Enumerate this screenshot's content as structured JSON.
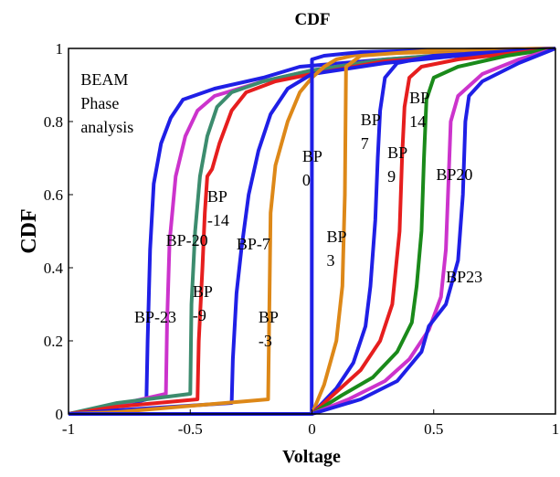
{
  "chart_data": {
    "type": "line",
    "title": "CDF",
    "xlabel": "Voltage",
    "ylabel": "CDF",
    "xlim": [
      -1,
      1
    ],
    "ylim": [
      0,
      1
    ],
    "x_ticks": [
      "-1",
      "-0.5",
      "0",
      "0.5",
      "1"
    ],
    "y_ticks": [
      "0",
      "0.2",
      "0.4",
      "0.6",
      "0.8",
      "1"
    ],
    "grid": false,
    "legend": "none",
    "annotations": [
      {
        "id": "beam",
        "lines": [
          "BEAM",
          "Phase",
          "analysis"
        ],
        "x": -0.95,
        "y": 0.9
      },
      {
        "id": "bp0",
        "lines": [
          "BP",
          "0"
        ],
        "x": -0.04,
        "y": 0.69
      },
      {
        "id": "bp3",
        "lines": [
          "BP",
          "3"
        ],
        "x": 0.06,
        "y": 0.47
      },
      {
        "id": "bp7",
        "lines": [
          "BP",
          "7"
        ],
        "x": 0.2,
        "y": 0.79
      },
      {
        "id": "bp9",
        "lines": [
          "BP",
          "9"
        ],
        "x": 0.31,
        "y": 0.7
      },
      {
        "id": "bp14",
        "lines": [
          "BP",
          "14"
        ],
        "x": 0.4,
        "y": 0.85
      },
      {
        "id": "bp20",
        "lines": [
          "BP20"
        ],
        "x": 0.51,
        "y": 0.64
      },
      {
        "id": "bp23",
        "lines": [
          "BP23"
        ],
        "x": 0.55,
        "y": 0.36
      },
      {
        "id": "bpm3",
        "lines": [
          "BP",
          "-3"
        ],
        "x": -0.22,
        "y": 0.25
      },
      {
        "id": "bpm7",
        "lines": [
          "BP-7"
        ],
        "x": -0.31,
        "y": 0.45
      },
      {
        "id": "bpm9",
        "lines": [
          "BP",
          "-9"
        ],
        "x": -0.49,
        "y": 0.32
      },
      {
        "id": "bpm14",
        "lines": [
          "BP",
          "-14"
        ],
        "x": -0.43,
        "y": 0.58
      },
      {
        "id": "bpm20",
        "lines": [
          "BP-20"
        ],
        "x": -0.6,
        "y": 0.46
      },
      {
        "id": "bpm23",
        "lines": [
          "BP-23"
        ],
        "x": -0.73,
        "y": 0.25
      }
    ],
    "series": [
      {
        "color": "#1f1fe6",
        "points": [
          [
            -1,
            0
          ],
          [
            -0.8,
            0.02
          ],
          [
            -0.68,
            0.04
          ],
          [
            -0.675,
            0.2
          ],
          [
            -0.665,
            0.45
          ],
          [
            -0.65,
            0.63
          ],
          [
            -0.62,
            0.74
          ],
          [
            -0.58,
            0.81
          ],
          [
            -0.53,
            0.86
          ],
          [
            -0.4,
            0.89
          ],
          [
            -0.2,
            0.92
          ],
          [
            -0.05,
            0.95
          ],
          [
            0.3,
            0.97
          ],
          [
            0.6,
            0.98
          ],
          [
            1,
            1
          ]
        ]
      },
      {
        "color": "#cc33cc",
        "points": [
          [
            -1,
            0
          ],
          [
            -0.8,
            0.025
          ],
          [
            -0.6,
            0.055
          ],
          [
            -0.595,
            0.25
          ],
          [
            -0.585,
            0.47
          ],
          [
            -0.56,
            0.65
          ],
          [
            -0.52,
            0.76
          ],
          [
            -0.47,
            0.83
          ],
          [
            -0.4,
            0.87
          ],
          [
            -0.2,
            0.91
          ],
          [
            0,
            0.94
          ],
          [
            0.3,
            0.97
          ],
          [
            0.6,
            0.985
          ],
          [
            1,
            1
          ]
        ]
      },
      {
        "color": "#3c8c6e",
        "points": [
          [
            -1,
            0
          ],
          [
            -0.8,
            0.03
          ],
          [
            -0.5,
            0.055
          ],
          [
            -0.495,
            0.3
          ],
          [
            -0.48,
            0.5
          ],
          [
            -0.46,
            0.65
          ],
          [
            -0.43,
            0.76
          ],
          [
            -0.39,
            0.84
          ],
          [
            -0.33,
            0.88
          ],
          [
            -0.2,
            0.91
          ],
          [
            0,
            0.94
          ],
          [
            0.3,
            0.97
          ],
          [
            0.6,
            0.985
          ],
          [
            1,
            1
          ]
        ]
      },
      {
        "color": "#e61e1e",
        "points": [
          [
            -1,
            0
          ],
          [
            -0.8,
            0.02
          ],
          [
            -0.47,
            0.04
          ],
          [
            -0.465,
            0.2
          ],
          [
            -0.45,
            0.4
          ],
          [
            -0.44,
            0.55
          ],
          [
            -0.43,
            0.65
          ],
          [
            -0.41,
            0.67
          ],
          [
            -0.38,
            0.74
          ],
          [
            -0.33,
            0.83
          ],
          [
            -0.27,
            0.88
          ],
          [
            -0.15,
            0.91
          ],
          [
            0,
            0.93
          ],
          [
            0.3,
            0.965
          ],
          [
            0.6,
            0.98
          ],
          [
            1,
            1
          ]
        ]
      },
      {
        "color": "#1f1fe6",
        "points": [
          [
            -1,
            0
          ],
          [
            -0.8,
            0.01
          ],
          [
            -0.33,
            0.03
          ],
          [
            -0.325,
            0.15
          ],
          [
            -0.31,
            0.33
          ],
          [
            -0.29,
            0.45
          ],
          [
            -0.26,
            0.6
          ],
          [
            -0.22,
            0.72
          ],
          [
            -0.17,
            0.82
          ],
          [
            -0.1,
            0.89
          ],
          [
            0,
            0.93
          ],
          [
            0.3,
            0.96
          ],
          [
            0.6,
            0.98
          ],
          [
            1,
            1
          ]
        ]
      },
      {
        "color": "#dd8818",
        "points": [
          [
            -1,
            0
          ],
          [
            -0.8,
            0.005
          ],
          [
            -0.18,
            0.04
          ],
          [
            -0.175,
            0.3
          ],
          [
            -0.17,
            0.55
          ],
          [
            -0.15,
            0.68
          ],
          [
            -0.1,
            0.8
          ],
          [
            -0.05,
            0.88
          ],
          [
            0,
            0.92
          ],
          [
            0.05,
            0.95
          ],
          [
            0.1,
            0.97
          ],
          [
            0.2,
            0.985
          ],
          [
            0.5,
            0.99
          ],
          [
            1,
            1
          ]
        ]
      },
      {
        "color": "#1f1fe6",
        "points": [
          [
            -1,
            0
          ],
          [
            -0.001,
            0
          ],
          [
            0,
            0.97
          ],
          [
            0.05,
            0.98
          ],
          [
            0.2,
            0.99
          ],
          [
            0.5,
            0.995
          ],
          [
            1,
            1
          ]
        ]
      },
      {
        "color": "#dd8818",
        "points": [
          [
            -1,
            0
          ],
          [
            0,
            0
          ],
          [
            0.05,
            0.08
          ],
          [
            0.1,
            0.2
          ],
          [
            0.125,
            0.35
          ],
          [
            0.135,
            0.6
          ],
          [
            0.14,
            0.95
          ],
          [
            0.2,
            0.98
          ],
          [
            0.5,
            0.995
          ],
          [
            1,
            1
          ]
        ]
      },
      {
        "color": "#1f1fe6",
        "points": [
          [
            -1,
            0
          ],
          [
            0,
            0
          ],
          [
            0.1,
            0.07
          ],
          [
            0.17,
            0.14
          ],
          [
            0.22,
            0.24
          ],
          [
            0.24,
            0.35
          ],
          [
            0.26,
            0.53
          ],
          [
            0.27,
            0.7
          ],
          [
            0.28,
            0.83
          ],
          [
            0.3,
            0.92
          ],
          [
            0.35,
            0.96
          ],
          [
            0.5,
            0.98
          ],
          [
            1,
            1
          ]
        ]
      },
      {
        "color": "#e61e1e",
        "points": [
          [
            -1,
            0
          ],
          [
            0,
            0
          ],
          [
            0.1,
            0.06
          ],
          [
            0.2,
            0.12
          ],
          [
            0.28,
            0.2
          ],
          [
            0.33,
            0.3
          ],
          [
            0.36,
            0.5
          ],
          [
            0.37,
            0.7
          ],
          [
            0.38,
            0.84
          ],
          [
            0.4,
            0.92
          ],
          [
            0.45,
            0.95
          ],
          [
            0.6,
            0.97
          ],
          [
            1,
            1
          ]
        ]
      },
      {
        "color": "#1a8a1a",
        "points": [
          [
            -1,
            0
          ],
          [
            0,
            0
          ],
          [
            0.12,
            0.05
          ],
          [
            0.25,
            0.1
          ],
          [
            0.35,
            0.17
          ],
          [
            0.41,
            0.25
          ],
          [
            0.43,
            0.35
          ],
          [
            0.45,
            0.5
          ],
          [
            0.46,
            0.7
          ],
          [
            0.47,
            0.86
          ],
          [
            0.5,
            0.92
          ],
          [
            0.6,
            0.95
          ],
          [
            0.8,
            0.98
          ],
          [
            1,
            1
          ]
        ]
      },
      {
        "color": "#cc33cc",
        "points": [
          [
            -1,
            0
          ],
          [
            0,
            0
          ],
          [
            0.15,
            0.04
          ],
          [
            0.3,
            0.09
          ],
          [
            0.4,
            0.15
          ],
          [
            0.48,
            0.23
          ],
          [
            0.53,
            0.32
          ],
          [
            0.55,
            0.45
          ],
          [
            0.56,
            0.62
          ],
          [
            0.57,
            0.8
          ],
          [
            0.6,
            0.87
          ],
          [
            0.7,
            0.93
          ],
          [
            0.85,
            0.97
          ],
          [
            1,
            1
          ]
        ]
      },
      {
        "color": "#1f1fe6",
        "points": [
          [
            -1,
            0
          ],
          [
            0,
            0
          ],
          [
            0.2,
            0.04
          ],
          [
            0.35,
            0.09
          ],
          [
            0.45,
            0.17
          ],
          [
            0.48,
            0.24
          ],
          [
            0.55,
            0.3
          ],
          [
            0.6,
            0.42
          ],
          [
            0.62,
            0.6
          ],
          [
            0.63,
            0.8
          ],
          [
            0.645,
            0.87
          ],
          [
            0.7,
            0.91
          ],
          [
            0.85,
            0.96
          ],
          [
            1,
            1
          ]
        ]
      }
    ]
  }
}
